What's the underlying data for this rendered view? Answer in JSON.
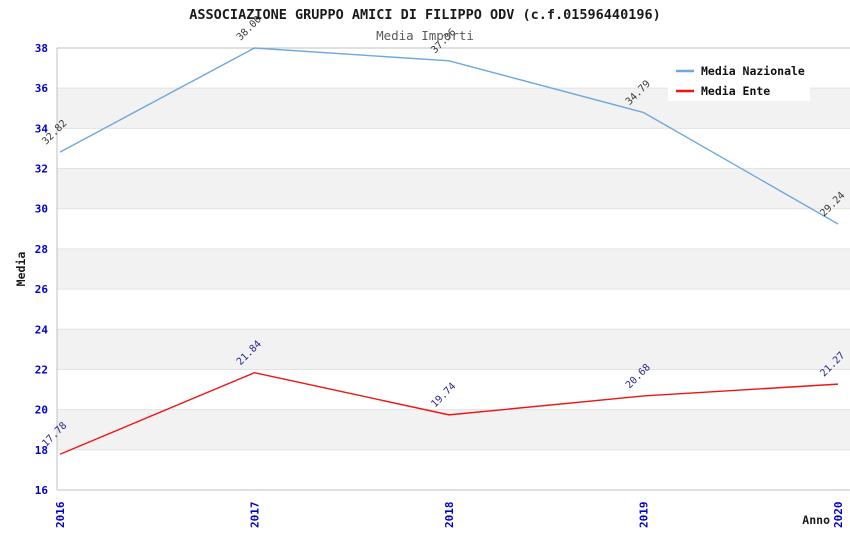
{
  "title": "ASSOCIAZIONE GRUPPO AMICI DI FILIPPO ODV (c.f.01596440196)",
  "subtitle": "Media Importi",
  "chart_data": {
    "type": "line",
    "x": [
      "2016",
      "2017",
      "2018",
      "2019",
      "2020"
    ],
    "series": [
      {
        "name": "Media Nazionale",
        "values": [
          32.82,
          38.0,
          37.36,
          34.79,
          29.24
        ],
        "color": "#6FA8DC",
        "label_color": "#3a3a3a"
      },
      {
        "name": "Media Ente",
        "values": [
          17.78,
          21.84,
          19.74,
          20.68,
          21.27
        ],
        "color": "#EE1414",
        "label_color": "#28288C"
      }
    ],
    "xlabel": "Anno",
    "ylabel": "Media",
    "ylim": [
      16,
      38
    ],
    "ytick_step": 2,
    "grid": true,
    "legend_position": "top-right",
    "colors": {
      "tick_label": "#0000CD",
      "band_fill": "#F2F2F2",
      "grid_line": "#E3E3E3",
      "spine": "#C0C0C0",
      "title": "#1a1a1a",
      "subtitle": "#5a5a5a",
      "legend_text": "#111111",
      "background": "#FFFFFF"
    }
  }
}
